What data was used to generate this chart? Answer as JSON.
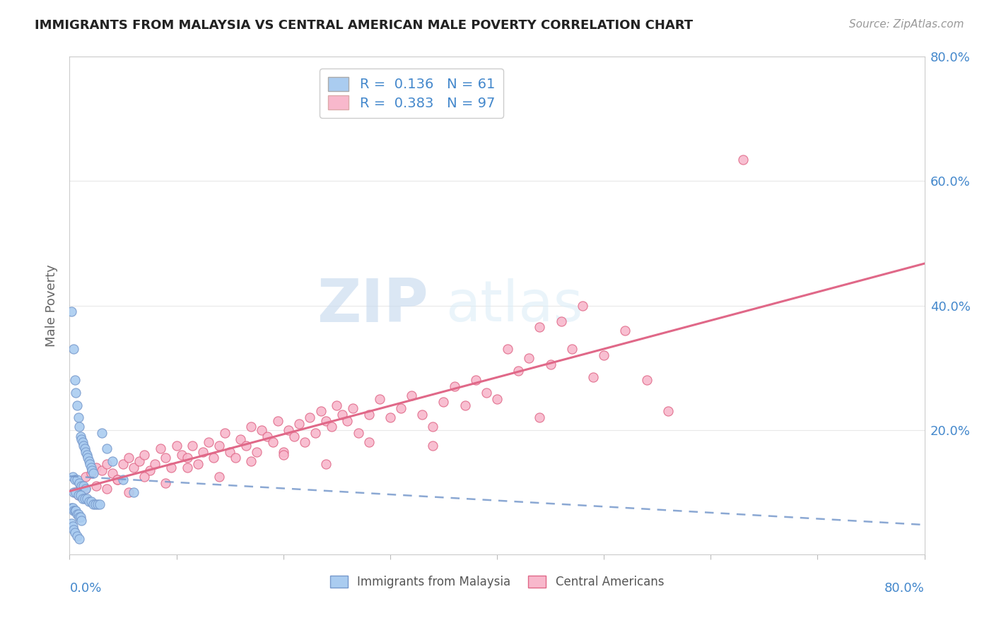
{
  "title": "IMMIGRANTS FROM MALAYSIA VS CENTRAL AMERICAN MALE POVERTY CORRELATION CHART",
  "source": "Source: ZipAtlas.com",
  "ylabel": "Male Poverty",
  "legend_label_1": "Immigrants from Malaysia",
  "legend_label_2": "Central Americans",
  "r1": 0.136,
  "n1": 61,
  "r2": 0.383,
  "n2": 97,
  "color_malaysia": "#aaccf0",
  "color_central": "#f8b8cc",
  "color_malaysia_line": "#7799cc",
  "color_central_line": "#e06888",
  "watermark_zip": "ZIP",
  "watermark_atlas": "atlas",
  "malaysia_x": [
    0.2,
    0.4,
    0.5,
    0.6,
    0.7,
    0.8,
    0.9,
    1.0,
    1.1,
    1.2,
    1.3,
    1.4,
    1.5,
    1.6,
    1.7,
    1.8,
    1.9,
    2.0,
    2.1,
    2.2,
    0.3,
    0.5,
    0.7,
    0.9,
    1.1,
    1.3,
    1.5,
    0.4,
    0.6,
    0.8,
    1.0,
    1.2,
    1.4,
    1.6,
    1.8,
    2.0,
    2.2,
    2.4,
    2.6,
    2.8,
    0.2,
    0.3,
    0.4,
    0.5,
    0.6,
    0.7,
    0.8,
    0.9,
    1.0,
    1.1,
    0.2,
    0.3,
    0.4,
    0.5,
    0.7,
    0.9,
    3.0,
    3.5,
    4.0,
    5.0,
    6.0
  ],
  "malaysia_y": [
    39.0,
    33.0,
    28.0,
    26.0,
    24.0,
    22.0,
    20.5,
    19.0,
    18.5,
    18.0,
    17.5,
    17.0,
    16.5,
    16.0,
    15.5,
    15.0,
    14.5,
    14.0,
    13.5,
    13.0,
    12.5,
    12.0,
    12.0,
    11.5,
    11.0,
    11.0,
    10.5,
    10.0,
    10.0,
    9.5,
    9.5,
    9.0,
    9.0,
    9.0,
    8.5,
    8.5,
    8.0,
    8.0,
    8.0,
    8.0,
    7.5,
    7.5,
    7.0,
    7.0,
    7.0,
    6.5,
    6.5,
    6.0,
    6.0,
    5.5,
    5.0,
    4.5,
    4.0,
    3.5,
    3.0,
    2.5,
    19.5,
    17.0,
    15.0,
    12.0,
    10.0
  ],
  "central_x": [
    0.5,
    1.0,
    1.5,
    2.0,
    2.5,
    3.0,
    3.5,
    4.0,
    4.5,
    5.0,
    5.5,
    6.0,
    6.5,
    7.0,
    7.5,
    8.0,
    8.5,
    9.0,
    9.5,
    10.0,
    10.5,
    11.0,
    11.5,
    12.0,
    12.5,
    13.0,
    13.5,
    14.0,
    14.5,
    15.0,
    15.5,
    16.0,
    16.5,
    17.0,
    17.5,
    18.0,
    18.5,
    19.0,
    19.5,
    20.0,
    20.5,
    21.0,
    21.5,
    22.0,
    22.5,
    23.0,
    23.5,
    24.0,
    24.5,
    25.0,
    25.5,
    26.0,
    26.5,
    27.0,
    28.0,
    29.0,
    30.0,
    31.0,
    32.0,
    33.0,
    34.0,
    35.0,
    36.0,
    37.0,
    38.0,
    39.0,
    40.0,
    41.0,
    42.0,
    43.0,
    44.0,
    45.0,
    46.0,
    47.0,
    48.0,
    49.0,
    50.0,
    52.0,
    54.0,
    56.0,
    0.8,
    1.5,
    2.5,
    3.5,
    4.5,
    5.5,
    7.0,
    9.0,
    11.0,
    14.0,
    17.0,
    20.0,
    24.0,
    28.0,
    34.0,
    44.0,
    63.0
  ],
  "central_y": [
    10.0,
    11.0,
    12.5,
    13.0,
    14.0,
    13.5,
    14.5,
    13.0,
    12.0,
    14.5,
    15.5,
    14.0,
    15.0,
    16.0,
    13.5,
    14.5,
    17.0,
    15.5,
    14.0,
    17.5,
    16.0,
    15.5,
    17.5,
    14.5,
    16.5,
    18.0,
    15.5,
    17.5,
    19.5,
    16.5,
    15.5,
    18.5,
    17.5,
    20.5,
    16.5,
    20.0,
    19.0,
    18.0,
    21.5,
    16.5,
    20.0,
    19.0,
    21.0,
    18.0,
    22.0,
    19.5,
    23.0,
    21.5,
    20.5,
    24.0,
    22.5,
    21.5,
    23.5,
    19.5,
    22.5,
    25.0,
    22.0,
    23.5,
    25.5,
    22.5,
    20.5,
    24.5,
    27.0,
    24.0,
    28.0,
    26.0,
    25.0,
    33.0,
    29.5,
    31.5,
    36.5,
    30.5,
    37.5,
    33.0,
    40.0,
    28.5,
    32.0,
    36.0,
    28.0,
    23.0,
    9.5,
    10.5,
    11.0,
    10.5,
    12.0,
    10.0,
    12.5,
    11.5,
    14.0,
    12.5,
    15.0,
    16.0,
    14.5,
    18.0,
    17.5,
    22.0,
    63.5
  ],
  "xlim": [
    0.0,
    80.0
  ],
  "ylim": [
    0.0,
    80.0
  ],
  "background_color": "#ffffff",
  "grid_color": "#e8e8e8"
}
